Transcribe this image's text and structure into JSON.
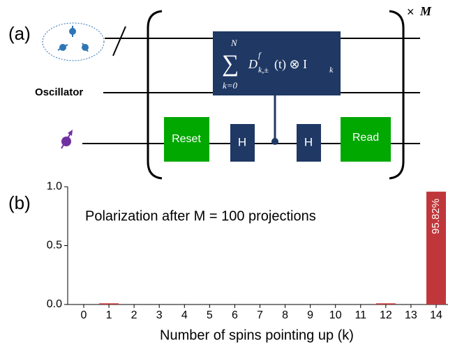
{
  "diagram": {
    "label": "(a)",
    "wire_label": "Oscillator",
    "gates": [
      "Reset",
      "H",
      "H",
      "Read"
    ],
    "formula": {
      "sum": "∑",
      "upper": "N",
      "lower": "k=0",
      "operator": "D",
      "sub": "k,±",
      "sup": "f",
      "rest": "(t) ⊗ I",
      "rest_sub": "k"
    },
    "repeat": {
      "times": "×",
      "symbol": "M"
    }
  },
  "chart_data": {
    "type": "bar",
    "label": "(b)",
    "title": "Polarization after M = 100 projections",
    "x_label": "Number of spins pointing up (k)",
    "categories": [
      "0",
      "1",
      "2",
      "3",
      "4",
      "5",
      "6",
      "7",
      "8",
      "9",
      "10",
      "11",
      "12",
      "13",
      "14"
    ],
    "values": [
      0,
      0.01,
      0,
      0,
      0,
      0,
      0,
      0,
      0,
      0,
      0,
      0,
      0.01,
      0,
      0.9582
    ],
    "value_labels": [
      null,
      null,
      null,
      null,
      null,
      null,
      null,
      null,
      null,
      null,
      null,
      null,
      null,
      null,
      "95.82%"
    ],
    "color": "#c0373b",
    "ylim": [
      0,
      1
    ],
    "yticks": [
      {
        "value": 0,
        "label": "0.0"
      },
      {
        "value": 0.5,
        "label": "0.5"
      },
      {
        "value": 1,
        "label": "1.0"
      }
    ]
  }
}
